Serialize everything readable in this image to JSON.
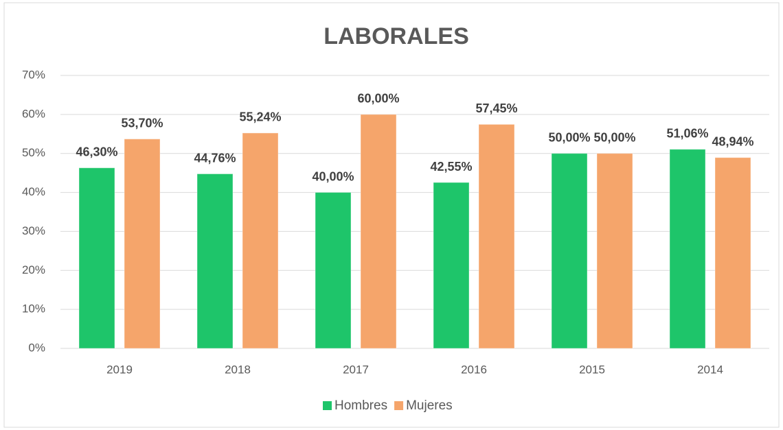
{
  "chart_data": {
    "type": "bar",
    "title": "LABORALES",
    "categories": [
      "2019",
      "2018",
      "2017",
      "2016",
      "2015",
      "2014"
    ],
    "series": [
      {
        "name": "Hombres",
        "color": "#1ec56a",
        "values": [
          46.3,
          44.76,
          40.0,
          42.55,
          50.0,
          51.06
        ],
        "value_labels": [
          "46,30%",
          "44,76%",
          "40,00%",
          "42,55%",
          "50,00%",
          "51,06%"
        ]
      },
      {
        "name": "Mujeres",
        "color": "#f5a56b",
        "values": [
          53.7,
          55.24,
          60.0,
          57.45,
          50.0,
          48.94
        ],
        "value_labels": [
          "53,70%",
          "55,24%",
          "60,00%",
          "57,45%",
          "50,00%",
          "48,94%"
        ]
      }
    ],
    "ylim": [
      0,
      70
    ],
    "yticks": [
      {
        "value": 0,
        "label": "0%"
      },
      {
        "value": 10,
        "label": "10%"
      },
      {
        "value": 20,
        "label": "20%"
      },
      {
        "value": 30,
        "label": "30%"
      },
      {
        "value": 40,
        "label": "40%"
      },
      {
        "value": 50,
        "label": "50%"
      },
      {
        "value": 60,
        "label": "60%"
      },
      {
        "value": 70,
        "label": "70%"
      }
    ],
    "grid": true,
    "legend": "bottom"
  }
}
